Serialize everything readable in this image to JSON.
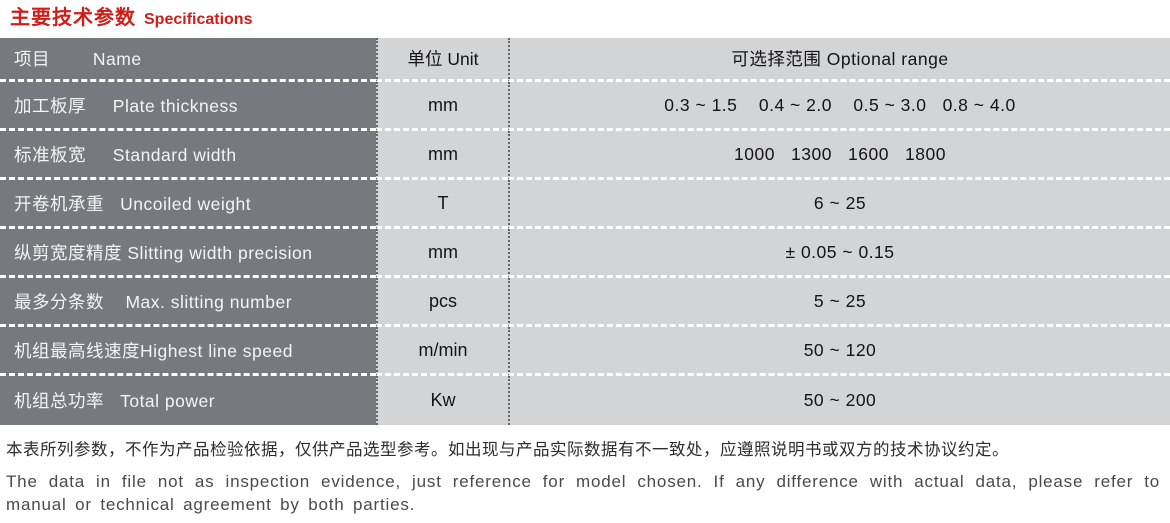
{
  "page": {
    "title_cn": "主要技术参数",
    "title_en": "Specifications",
    "colors": {
      "accent_red": "#ce1e1a",
      "row_dark_gray": "#76797e",
      "row_light_gray": "#d3d4d6"
    }
  },
  "table": {
    "header": {
      "name": "项目        Name",
      "unit": "单位 Unit",
      "range": "可选择范围 Optional range"
    },
    "rows": [
      {
        "name": "加工板厚     Plate thickness",
        "unit": "mm",
        "range": "0.3 ~ 1.5    0.4 ~ 2.0    0.5 ~ 3.0   0.8 ~ 4.0"
      },
      {
        "name": "标准板宽     Standard width",
        "unit": "mm",
        "range": "1000   1300   1600   1800"
      },
      {
        "name": "开卷机承重   Uncoiled weight",
        "unit": "T",
        "range": "6 ~ 25"
      },
      {
        "name": "纵剪宽度精度 Slitting width precision",
        "unit": "mm",
        "range": "± 0.05 ~ 0.15"
      },
      {
        "name": "最多分条数    Max. slitting number",
        "unit": "pcs",
        "range": "5 ~ 25"
      },
      {
        "name": "机组最高线速度Highest line speed",
        "unit": "m/min",
        "range": "50 ~ 120"
      },
      {
        "name": "机组总功率   Total power",
        "unit": "Kw",
        "range": "50 ~ 200"
      }
    ]
  },
  "footer": {
    "note_cn": "本表所列参数，不作为产品检验依据，仅供产品选型参考。如出现与产品实际数据有不一致处，应遵照说明书或双方的技术协议约定。",
    "note_en": "The data in file not as inspection evidence, just reference for model chosen. If any difference with actual data, please refer to manual or technical agreement by both parties."
  }
}
